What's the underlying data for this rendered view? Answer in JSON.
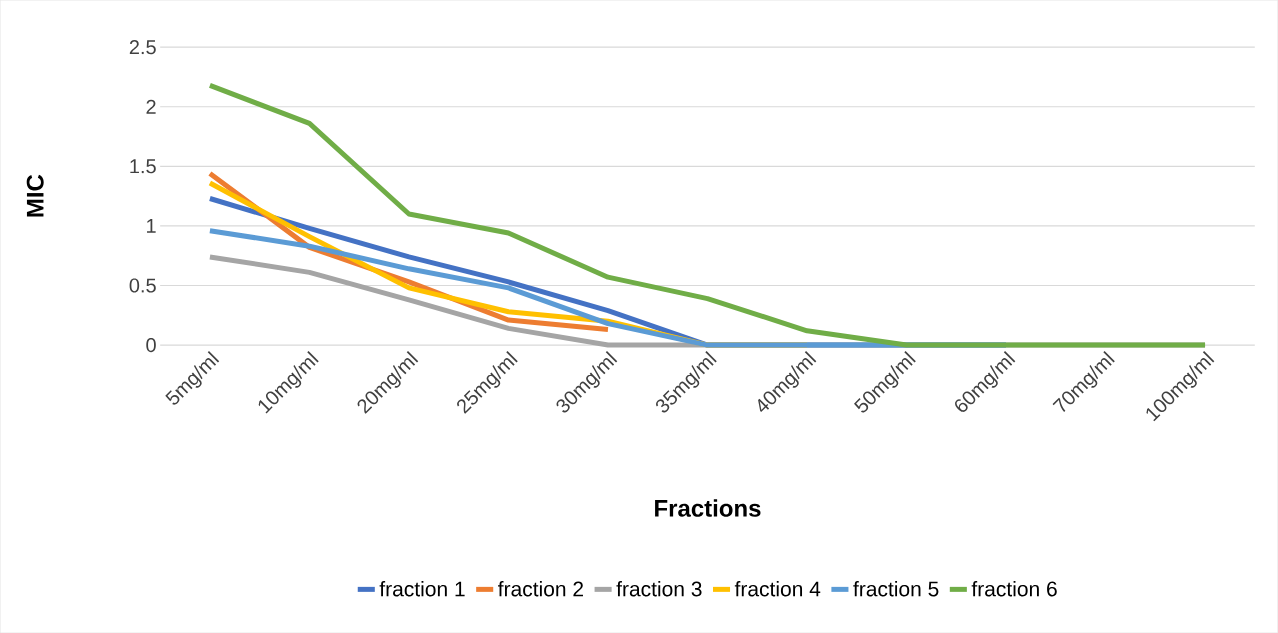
{
  "chart_data": {
    "type": "line",
    "xlabel": "Fractions",
    "ylabel": "MIC",
    "categories": [
      "5mg/ml",
      "10mg/ml",
      "20mg/ml",
      "25mg/ml",
      "30mg/ml",
      "35mg/ml",
      "40mg/ml",
      "50mg/ml",
      "60mg/ml",
      "70mg/ml",
      "100mg/ml"
    ],
    "series": [
      {
        "name": "fraction 1",
        "color": "#4472c4",
        "values": [
          1.23,
          0.98,
          0.74,
          0.53,
          0.29,
          0,
          0,
          0,
          0,
          null,
          null
        ]
      },
      {
        "name": "fraction 2",
        "color": "#ed7d31",
        "values": [
          1.44,
          0.82,
          0.53,
          0.21,
          0.13,
          null,
          null,
          null,
          null,
          null,
          null
        ]
      },
      {
        "name": "fraction 3",
        "color": "#a5a5a5",
        "values": [
          0.74,
          0.61,
          0.38,
          0.14,
          0,
          0,
          0,
          0,
          0,
          0,
          0
        ]
      },
      {
        "name": "fraction 4",
        "color": "#ffc000",
        "values": [
          1.36,
          0.91,
          0.48,
          0.28,
          0.2,
          0,
          0,
          null,
          null,
          null,
          null
        ]
      },
      {
        "name": "fraction 5",
        "color": "#5b9bd5",
        "values": [
          0.96,
          0.83,
          0.64,
          0.48,
          0.18,
          0,
          0,
          0,
          0,
          null,
          null
        ]
      },
      {
        "name": "fraction 6",
        "color": "#70ad47",
        "values": [
          2.18,
          1.86,
          1.1,
          0.94,
          0.57,
          0.39,
          0.12,
          0,
          0,
          0,
          0
        ]
      }
    ],
    "ylim": [
      0,
      2.5
    ],
    "yticks": [
      0,
      0.5,
      1,
      1.5,
      2,
      2.5
    ],
    "grid": "y",
    "legend": "bottom",
    "marker": "none",
    "line_style": "solid"
  }
}
